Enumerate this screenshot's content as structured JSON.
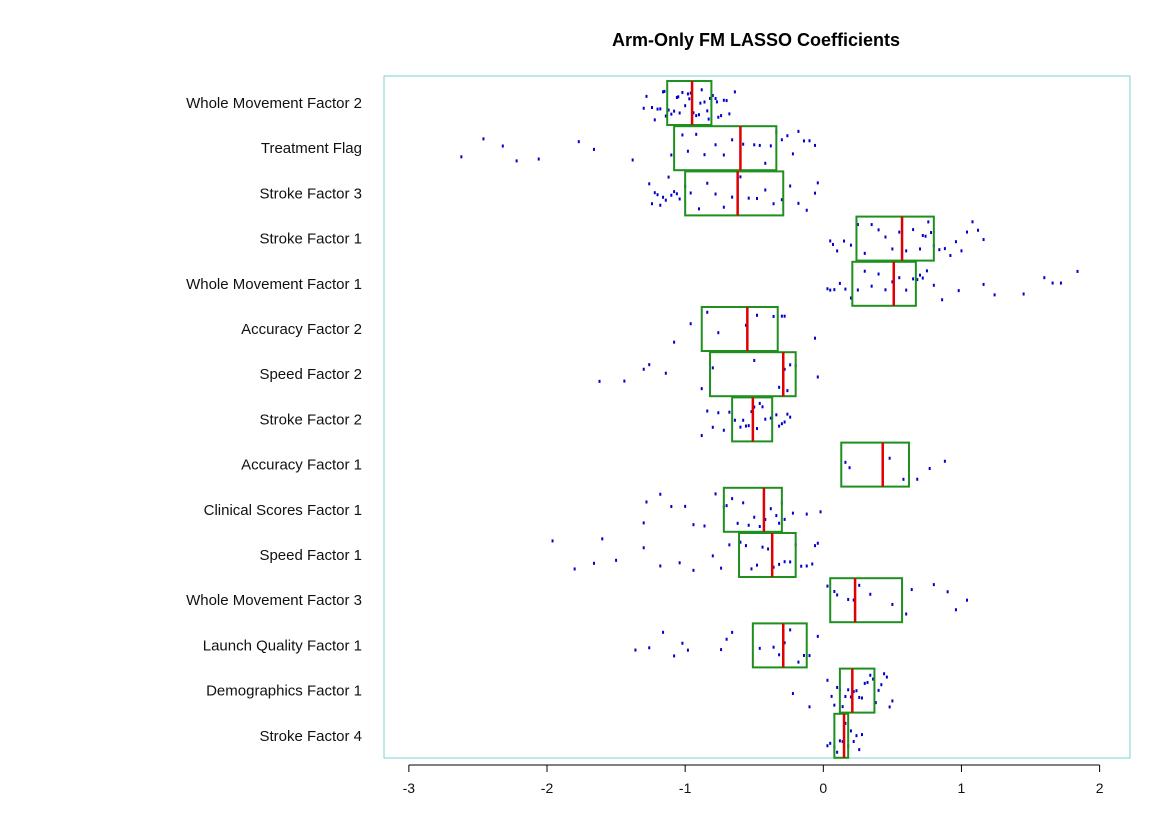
{
  "chart_data": {
    "type": "boxplot",
    "title": "Arm-Only FM LASSO Coefficients",
    "xlabel": "",
    "ylabel": "",
    "xlim": [
      -3.18,
      2.22
    ],
    "xticks": [
      -3,
      -2,
      -1,
      0,
      1,
      2
    ],
    "colors": {
      "frame": "#7fd3d3",
      "box": "#1f8f1f",
      "median": "#e00000",
      "points": "#0000cc"
    },
    "categories": [
      "Whole Movement Factor 2",
      "Treatment Flag",
      "Stroke Factor 3",
      "Stroke Factor 1",
      "Whole Movement Factor 1",
      "Accuracy Factor 2",
      "Speed Factor 2",
      "Stroke Factor 2",
      "Accuracy Factor 1",
      "Clinical Scores Factor 1",
      "Speed Factor 1",
      "Whole Movement Factor 3",
      "Launch Quality Factor 1",
      "Demographics Factor 1",
      "Stroke Factor 4"
    ],
    "boxes": [
      {
        "q1": -1.13,
        "median": -0.95,
        "q3": -0.81,
        "points": [
          -1.3,
          -1.28,
          -1.24,
          -1.22,
          -1.2,
          -1.18,
          -1.16,
          -1.14,
          -1.12,
          -1.1,
          -1.08,
          -1.06,
          -1.04,
          -1.02,
          -1.0,
          -0.98,
          -0.96,
          -0.94,
          -0.92,
          -0.9,
          -0.88,
          -0.86,
          -0.84,
          -0.82,
          -0.8,
          -0.78,
          -0.76,
          -0.74,
          -0.72,
          -0.7,
          -0.68,
          -0.64,
          -1.15,
          -1.05,
          -0.97,
          -0.89,
          -0.83,
          -0.77
        ]
      },
      {
        "q1": -1.08,
        "median": -0.6,
        "q3": -0.34,
        "points": [
          -2.62,
          -2.46,
          -2.32,
          -2.22,
          -2.06,
          -1.77,
          -1.66,
          -1.38,
          -1.1,
          -1.02,
          -0.98,
          -0.92,
          -0.86,
          -0.78,
          -0.72,
          -0.66,
          -0.58,
          -0.5,
          -0.46,
          -0.42,
          -0.38,
          -0.34,
          -0.3,
          -0.26,
          -0.22,
          -0.18,
          -0.14,
          -0.1,
          -0.06
        ]
      },
      {
        "q1": -1.0,
        "median": -0.62,
        "q3": -0.29,
        "points": [
          -1.26,
          -1.24,
          -1.22,
          -1.2,
          -1.18,
          -1.16,
          -1.14,
          -1.12,
          -1.1,
          -1.08,
          -1.06,
          -1.04,
          -1.0,
          -0.96,
          -0.9,
          -0.84,
          -0.78,
          -0.72,
          -0.66,
          -0.6,
          -0.54,
          -0.48,
          -0.42,
          -0.36,
          -0.3,
          -0.24,
          -0.18,
          -0.12,
          -0.06,
          -0.04
        ]
      },
      {
        "q1": 0.24,
        "median": 0.57,
        "q3": 0.8,
        "points": [
          0.05,
          0.07,
          0.1,
          0.15,
          0.2,
          0.25,
          0.3,
          0.35,
          0.4,
          0.45,
          0.5,
          0.55,
          0.6,
          0.65,
          0.7,
          0.72,
          0.74,
          0.76,
          0.78,
          0.8,
          0.84,
          0.88,
          0.92,
          0.96,
          1.0,
          1.04,
          1.08,
          1.12,
          1.16
        ]
      },
      {
        "q1": 0.21,
        "median": 0.51,
        "q3": 0.67,
        "points": [
          0.03,
          0.05,
          0.08,
          0.12,
          0.16,
          0.2,
          0.25,
          0.3,
          0.35,
          0.4,
          0.45,
          0.5,
          0.55,
          0.6,
          0.65,
          0.68,
          0.7,
          0.72,
          0.75,
          0.8,
          0.86,
          0.98,
          1.16,
          1.24,
          1.45,
          1.6,
          1.66,
          1.72,
          1.84
        ]
      },
      {
        "q1": -0.88,
        "median": -0.55,
        "q3": -0.33,
        "points": [
          -1.08,
          -0.96,
          -0.84,
          -0.76,
          -0.56,
          -0.48,
          -0.36,
          -0.3,
          -0.28,
          -0.06
        ]
      },
      {
        "q1": -0.82,
        "median": -0.29,
        "q3": -0.2,
        "points": [
          -1.62,
          -1.44,
          -1.3,
          -1.26,
          -1.14,
          -0.88,
          -0.8,
          -0.5,
          -0.32,
          -0.28,
          -0.26,
          -0.24,
          -0.2,
          -0.04
        ]
      },
      {
        "q1": -0.66,
        "median": -0.51,
        "q3": -0.37,
        "points": [
          -0.88,
          -0.84,
          -0.8,
          -0.76,
          -0.72,
          -0.68,
          -0.64,
          -0.6,
          -0.58,
          -0.56,
          -0.54,
          -0.52,
          -0.5,
          -0.48,
          -0.46,
          -0.44,
          -0.42,
          -0.38,
          -0.34,
          -0.32,
          -0.3,
          -0.28,
          -0.26,
          -0.24
        ]
      },
      {
        "q1": 0.13,
        "median": 0.43,
        "q3": 0.62,
        "points": [
          0.16,
          0.19,
          0.48,
          0.58,
          0.68,
          0.77,
          0.88
        ]
      },
      {
        "q1": -0.72,
        "median": -0.43,
        "q3": -0.3,
        "points": [
          -1.3,
          -1.28,
          -1.18,
          -1.1,
          -1.0,
          -0.94,
          -0.86,
          -0.78,
          -0.72,
          -0.7,
          -0.66,
          -0.62,
          -0.58,
          -0.54,
          -0.5,
          -0.46,
          -0.42,
          -0.38,
          -0.34,
          -0.32,
          -0.3,
          -0.28,
          -0.22,
          -0.12,
          -0.02
        ]
      },
      {
        "q1": -0.61,
        "median": -0.37,
        "q3": -0.2,
        "points": [
          -1.96,
          -1.8,
          -1.66,
          -1.6,
          -1.5,
          -1.3,
          -1.18,
          -1.04,
          -0.94,
          -0.8,
          -0.74,
          -0.68,
          -0.6,
          -0.56,
          -0.52,
          -0.48,
          -0.44,
          -0.4,
          -0.36,
          -0.32,
          -0.28,
          -0.24,
          -0.2,
          -0.16,
          -0.12,
          -0.08,
          -0.06,
          -0.04
        ]
      },
      {
        "q1": 0.05,
        "median": 0.23,
        "q3": 0.57,
        "points": [
          0.03,
          0.08,
          0.1,
          0.18,
          0.22,
          0.26,
          0.34,
          0.5,
          0.6,
          0.64,
          0.8,
          0.9,
          0.96,
          1.04
        ]
      },
      {
        "q1": -0.51,
        "median": -0.29,
        "q3": -0.12,
        "points": [
          -1.36,
          -1.26,
          -1.16,
          -1.08,
          -1.02,
          -0.98,
          -0.74,
          -0.7,
          -0.66,
          -0.46,
          -0.36,
          -0.32,
          -0.28,
          -0.24,
          -0.18,
          -0.14,
          -0.1,
          -0.04
        ]
      },
      {
        "q1": 0.12,
        "median": 0.21,
        "q3": 0.37,
        "points": [
          0.03,
          0.06,
          0.08,
          0.1,
          0.12,
          0.14,
          0.16,
          0.18,
          0.2,
          0.22,
          0.24,
          0.26,
          0.28,
          0.3,
          0.32,
          0.34,
          0.36,
          0.38,
          0.4,
          0.42,
          0.44,
          0.46,
          0.48,
          0.5,
          -0.22,
          -0.1
        ]
      },
      {
        "q1": 0.08,
        "median": 0.15,
        "q3": 0.18,
        "points": [
          0.03,
          0.05,
          0.08,
          0.1,
          0.12,
          0.14,
          0.16,
          0.18,
          0.2,
          0.22,
          0.24,
          0.26,
          0.28
        ]
      }
    ]
  }
}
